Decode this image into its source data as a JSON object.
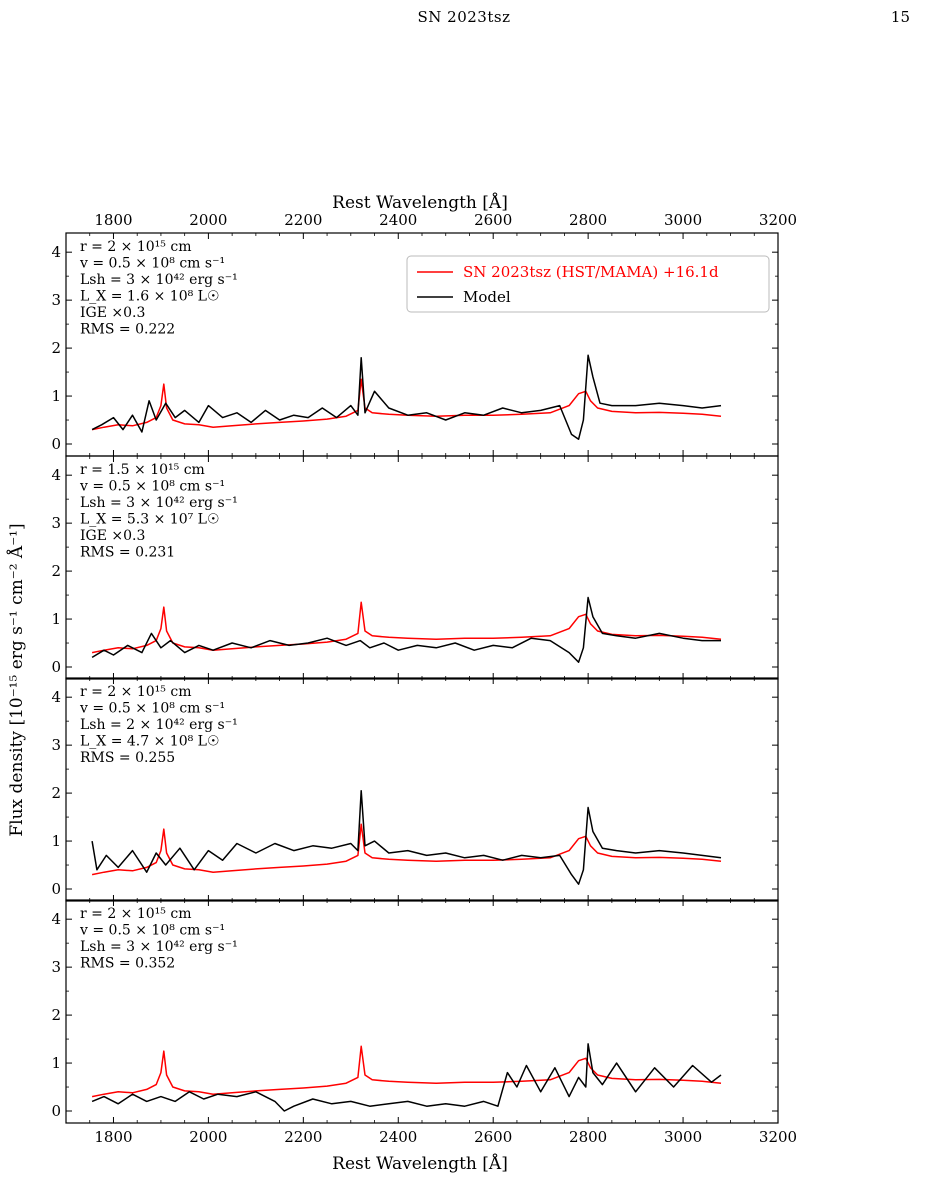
{
  "page_header": {
    "title": "SN 2023tsz",
    "page_number": "15"
  },
  "figure": {
    "top_xlabel": "Rest Wavelength [Å]",
    "bottom_xlabel": "Rest Wavelength [Å]",
    "ylabel": "Flux density [10⁻¹⁵ erg s⁻¹ cm⁻² Å⁻¹]",
    "legend": [
      {
        "label": "SN 2023tsz (HST/MAMA) +16.1d",
        "color": "#ff0000"
      },
      {
        "label": "Model",
        "color": "#000000"
      }
    ],
    "colors": {
      "observed": "#ff0000",
      "model": "#000000"
    }
  },
  "chart_data": [
    {
      "type": "line",
      "xlim": [
        1700,
        3200
      ],
      "ylim": [
        -0.25,
        4.4
      ],
      "xticks": [
        1800,
        2000,
        2200,
        2400,
        2600,
        2800,
        3000,
        3200
      ],
      "yticks": [
        0,
        1,
        2,
        3,
        4
      ],
      "annotations": [
        "r = 2 × 10¹⁵ cm",
        "v = 0.5 × 10⁸ cm s⁻¹",
        "Lsh = 3 × 10⁴² erg s⁻¹",
        "L_X = 1.6 × 10⁸ L☉",
        "IGE ×0.3",
        "RMS = 0.222"
      ],
      "series": [
        {
          "name": "SN 2023tsz (HST/MAMA) +16.1d",
          "x": [
            1755,
            1780,
            1810,
            1840,
            1870,
            1890,
            1900,
            1906,
            1912,
            1925,
            1950,
            1980,
            2010,
            2050,
            2100,
            2150,
            2200,
            2250,
            2290,
            2315,
            2322,
            2330,
            2345,
            2380,
            2420,
            2480,
            2540,
            2600,
            2660,
            2720,
            2760,
            2780,
            2795,
            2805,
            2820,
            2850,
            2900,
            2950,
            3000,
            3040,
            3080
          ],
          "y": [
            0.3,
            0.35,
            0.4,
            0.38,
            0.45,
            0.55,
            0.8,
            1.25,
            0.75,
            0.5,
            0.42,
            0.4,
            0.35,
            0.38,
            0.42,
            0.45,
            0.48,
            0.52,
            0.58,
            0.7,
            1.35,
            0.75,
            0.65,
            0.62,
            0.6,
            0.58,
            0.6,
            0.6,
            0.62,
            0.65,
            0.8,
            1.05,
            1.1,
            0.9,
            0.75,
            0.68,
            0.65,
            0.66,
            0.64,
            0.62,
            0.58
          ]
        },
        {
          "name": "Model",
          "x": [
            1755,
            1775,
            1800,
            1820,
            1840,
            1860,
            1875,
            1890,
            1910,
            1930,
            1950,
            1980,
            2000,
            2030,
            2060,
            2090,
            2120,
            2150,
            2180,
            2210,
            2240,
            2270,
            2300,
            2315,
            2322,
            2330,
            2350,
            2380,
            2420,
            2460,
            2500,
            2540,
            2580,
            2620,
            2660,
            2700,
            2740,
            2765,
            2780,
            2790,
            2800,
            2810,
            2825,
            2850,
            2900,
            2950,
            3000,
            3040,
            3080
          ],
          "y": [
            0.3,
            0.4,
            0.55,
            0.3,
            0.6,
            0.25,
            0.9,
            0.5,
            0.85,
            0.55,
            0.7,
            0.45,
            0.8,
            0.55,
            0.65,
            0.45,
            0.7,
            0.5,
            0.6,
            0.55,
            0.75,
            0.55,
            0.8,
            0.6,
            1.8,
            0.65,
            1.1,
            0.75,
            0.6,
            0.65,
            0.5,
            0.65,
            0.6,
            0.75,
            0.65,
            0.7,
            0.8,
            0.2,
            0.1,
            0.5,
            1.85,
            1.4,
            0.85,
            0.8,
            0.8,
            0.85,
            0.8,
            0.75,
            0.8
          ]
        }
      ]
    },
    {
      "type": "line",
      "xlim": [
        1700,
        3200
      ],
      "ylim": [
        -0.25,
        4.4
      ],
      "xticks": [
        1800,
        2000,
        2200,
        2400,
        2600,
        2800,
        3000,
        3200
      ],
      "yticks": [
        0,
        1,
        2,
        3,
        4
      ],
      "annotations": [
        "r = 1.5 × 10¹⁵ cm",
        "v = 0.5 × 10⁸ cm s⁻¹",
        "Lsh = 3 × 10⁴² erg s⁻¹",
        "L_X = 5.3 × 10⁷ L☉",
        "IGE ×0.3",
        "RMS = 0.231"
      ],
      "series": [
        {
          "name": "SN 2023tsz (HST/MAMA) +16.1d",
          "x": [
            1755,
            1780,
            1810,
            1840,
            1870,
            1890,
            1900,
            1906,
            1912,
            1925,
            1950,
            1980,
            2010,
            2050,
            2100,
            2150,
            2200,
            2250,
            2290,
            2315,
            2322,
            2330,
            2345,
            2380,
            2420,
            2480,
            2540,
            2600,
            2660,
            2720,
            2760,
            2780,
            2795,
            2805,
            2820,
            2850,
            2900,
            2950,
            3000,
            3040,
            3080
          ],
          "y": [
            0.3,
            0.35,
            0.4,
            0.38,
            0.45,
            0.55,
            0.8,
            1.25,
            0.75,
            0.5,
            0.42,
            0.4,
            0.35,
            0.38,
            0.42,
            0.45,
            0.48,
            0.52,
            0.58,
            0.7,
            1.35,
            0.75,
            0.65,
            0.62,
            0.6,
            0.58,
            0.6,
            0.6,
            0.62,
            0.65,
            0.8,
            1.05,
            1.1,
            0.9,
            0.75,
            0.68,
            0.65,
            0.66,
            0.64,
            0.62,
            0.58
          ]
        },
        {
          "name": "Model",
          "x": [
            1755,
            1780,
            1800,
            1830,
            1860,
            1880,
            1900,
            1920,
            1950,
            1980,
            2010,
            2050,
            2090,
            2130,
            2170,
            2210,
            2250,
            2290,
            2320,
            2340,
            2370,
            2400,
            2440,
            2480,
            2520,
            2560,
            2600,
            2640,
            2680,
            2720,
            2760,
            2780,
            2790,
            2800,
            2810,
            2830,
            2860,
            2900,
            2950,
            3000,
            3040,
            3080
          ],
          "y": [
            0.2,
            0.35,
            0.25,
            0.45,
            0.3,
            0.7,
            0.4,
            0.55,
            0.3,
            0.45,
            0.35,
            0.5,
            0.4,
            0.55,
            0.45,
            0.5,
            0.6,
            0.45,
            0.55,
            0.4,
            0.5,
            0.35,
            0.45,
            0.4,
            0.5,
            0.35,
            0.45,
            0.4,
            0.6,
            0.55,
            0.3,
            0.1,
            0.4,
            1.45,
            1.05,
            0.7,
            0.65,
            0.6,
            0.7,
            0.6,
            0.55,
            0.55
          ]
        }
      ]
    },
    {
      "type": "line",
      "xlim": [
        1700,
        3200
      ],
      "ylim": [
        -0.25,
        4.4
      ],
      "xticks": [
        1800,
        2000,
        2200,
        2400,
        2600,
        2800,
        3000,
        3200
      ],
      "yticks": [
        0,
        1,
        2,
        3,
        4
      ],
      "annotations": [
        "r = 2 × 10¹⁵ cm",
        "v = 0.5 × 10⁸ cm s⁻¹",
        "Lsh = 2 × 10⁴² erg s⁻¹",
        "L_X = 4.7 × 10⁸ L☉",
        "RMS = 0.255"
      ],
      "series": [
        {
          "name": "SN 2023tsz (HST/MAMA) +16.1d",
          "x": [
            1755,
            1780,
            1810,
            1840,
            1870,
            1890,
            1900,
            1906,
            1912,
            1925,
            1950,
            1980,
            2010,
            2050,
            2100,
            2150,
            2200,
            2250,
            2290,
            2315,
            2322,
            2330,
            2345,
            2380,
            2420,
            2480,
            2540,
            2600,
            2660,
            2720,
            2760,
            2780,
            2795,
            2805,
            2820,
            2850,
            2900,
            2950,
            3000,
            3040,
            3080
          ],
          "y": [
            0.3,
            0.35,
            0.4,
            0.38,
            0.45,
            0.55,
            0.8,
            1.25,
            0.75,
            0.5,
            0.42,
            0.4,
            0.35,
            0.38,
            0.42,
            0.45,
            0.48,
            0.52,
            0.58,
            0.7,
            1.35,
            0.75,
            0.65,
            0.62,
            0.6,
            0.58,
            0.6,
            0.6,
            0.62,
            0.65,
            0.8,
            1.05,
            1.1,
            0.9,
            0.75,
            0.68,
            0.65,
            0.66,
            0.64,
            0.62,
            0.58
          ]
        },
        {
          "name": "Model",
          "x": [
            1755,
            1765,
            1785,
            1810,
            1840,
            1870,
            1890,
            1910,
            1940,
            1970,
            2000,
            2030,
            2060,
            2100,
            2140,
            2180,
            2220,
            2260,
            2300,
            2315,
            2322,
            2330,
            2350,
            2380,
            2420,
            2460,
            2500,
            2540,
            2580,
            2620,
            2660,
            2700,
            2740,
            2765,
            2780,
            2790,
            2800,
            2810,
            2830,
            2860,
            2900,
            2950,
            3000,
            3040,
            3080
          ],
          "y": [
            1.0,
            0.4,
            0.7,
            0.45,
            0.8,
            0.35,
            0.75,
            0.5,
            0.85,
            0.4,
            0.8,
            0.6,
            0.95,
            0.75,
            0.95,
            0.8,
            0.9,
            0.85,
            0.95,
            0.8,
            2.05,
            0.9,
            1.0,
            0.75,
            0.8,
            0.7,
            0.75,
            0.65,
            0.7,
            0.6,
            0.7,
            0.65,
            0.7,
            0.3,
            0.1,
            0.4,
            1.7,
            1.2,
            0.85,
            0.8,
            0.75,
            0.8,
            0.75,
            0.7,
            0.65
          ]
        }
      ]
    },
    {
      "type": "line",
      "xlim": [
        1700,
        3200
      ],
      "ylim": [
        -0.25,
        4.4
      ],
      "xticks": [
        1800,
        2000,
        2200,
        2400,
        2600,
        2800,
        3000,
        3200
      ],
      "yticks": [
        0,
        1,
        2,
        3,
        4
      ],
      "annotations": [
        "r = 2 × 10¹⁵ cm",
        "v = 0.5 × 10⁸ cm s⁻¹",
        "Lsh = 3 × 10⁴² erg s⁻¹",
        "RMS = 0.352"
      ],
      "series": [
        {
          "name": "SN 2023tsz (HST/MAMA) +16.1d",
          "x": [
            1755,
            1780,
            1810,
            1840,
            1870,
            1890,
            1900,
            1906,
            1912,
            1925,
            1950,
            1980,
            2010,
            2050,
            2100,
            2150,
            2200,
            2250,
            2290,
            2315,
            2322,
            2330,
            2345,
            2380,
            2420,
            2480,
            2540,
            2600,
            2660,
            2720,
            2760,
            2780,
            2795,
            2805,
            2820,
            2850,
            2900,
            2950,
            3000,
            3040,
            3080
          ],
          "y": [
            0.3,
            0.35,
            0.4,
            0.38,
            0.45,
            0.55,
            0.8,
            1.25,
            0.75,
            0.5,
            0.42,
            0.4,
            0.35,
            0.38,
            0.42,
            0.45,
            0.48,
            0.52,
            0.58,
            0.7,
            1.35,
            0.75,
            0.65,
            0.62,
            0.6,
            0.58,
            0.6,
            0.6,
            0.62,
            0.65,
            0.8,
            1.05,
            1.1,
            0.9,
            0.75,
            0.68,
            0.65,
            0.66,
            0.64,
            0.62,
            0.58
          ]
        },
        {
          "name": "Model",
          "x": [
            1755,
            1780,
            1810,
            1840,
            1870,
            1900,
            1930,
            1960,
            1990,
            2020,
            2060,
            2100,
            2140,
            2160,
            2180,
            2220,
            2260,
            2300,
            2340,
            2380,
            2420,
            2460,
            2500,
            2540,
            2580,
            2610,
            2630,
            2650,
            2670,
            2700,
            2730,
            2760,
            2780,
            2795,
            2800,
            2810,
            2830,
            2860,
            2900,
            2940,
            2980,
            3020,
            3060,
            3080
          ],
          "y": [
            0.2,
            0.3,
            0.15,
            0.35,
            0.2,
            0.3,
            0.2,
            0.4,
            0.25,
            0.35,
            0.3,
            0.4,
            0.2,
            0.0,
            0.1,
            0.25,
            0.15,
            0.2,
            0.1,
            0.15,
            0.2,
            0.1,
            0.15,
            0.1,
            0.2,
            0.1,
            0.8,
            0.5,
            0.95,
            0.4,
            0.9,
            0.3,
            0.7,
            0.5,
            1.4,
            0.8,
            0.55,
            1.0,
            0.4,
            0.9,
            0.5,
            0.95,
            0.6,
            0.75
          ]
        }
      ]
    }
  ]
}
